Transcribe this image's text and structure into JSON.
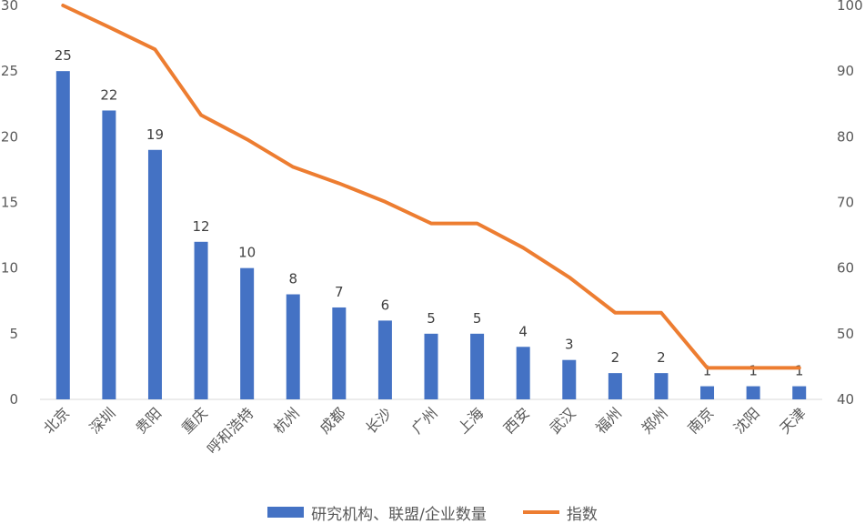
{
  "chart_data": {
    "type": "bar",
    "categories": [
      "北京",
      "深圳",
      "贵阳",
      "重庆",
      "呼和浩特",
      "杭州",
      "成都",
      "长沙",
      "广州",
      "上海",
      "西安",
      "武汉",
      "福州",
      "郑州",
      "南京",
      "沈阳",
      "天津"
    ],
    "series": [
      {
        "name": "研究机构、联盟/企业数量",
        "type": "bar",
        "axis": "left",
        "values": [
          25,
          22,
          19,
          12,
          10,
          8,
          7,
          6,
          5,
          5,
          4,
          3,
          2,
          2,
          1,
          1,
          1
        ],
        "color": "#4472c4"
      },
      {
        "name": "指数",
        "type": "line",
        "axis": "right",
        "values": [
          100,
          96.7,
          93.3,
          83.3,
          79.6,
          75.4,
          72.9,
          70.1,
          66.8,
          66.8,
          63.1,
          58.6,
          53.2,
          53.2,
          44.8,
          44.8,
          44.8
        ],
        "color": "#ed7d31"
      }
    ],
    "y_left": {
      "min": 0,
      "max": 30,
      "ticks": [
        0,
        5,
        10,
        15,
        20,
        25,
        30
      ]
    },
    "y_right": {
      "min": 40,
      "max": 100,
      "ticks": [
        40,
        50,
        60,
        70,
        80,
        90,
        100
      ]
    },
    "data_labels": true,
    "grid": false,
    "legend": "bottom"
  }
}
